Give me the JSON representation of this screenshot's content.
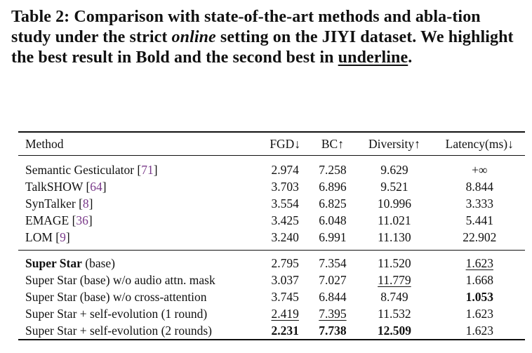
{
  "caption": {
    "part1": "Table 2: Comparison with state-of-the-art methods and abla-tion study under the strict ",
    "italic": "online",
    "part2": " setting on the JIYI dataset. We highlight the best result in Bold and the second best in ",
    "underlined": "underline",
    "end": "."
  },
  "columns": [
    "Method",
    "FGD↓",
    "BC↑",
    "Diversity↑",
    "Latency(ms)↓"
  ],
  "rows": [
    {
      "name": "Semantic Gesticulator",
      "ref": "71",
      "fgd": "2.974",
      "bc": "7.258",
      "div": "9.629",
      "lat": "+∞"
    },
    {
      "name": "TalkSHOW",
      "ref": "64",
      "fgd": "3.703",
      "bc": "6.896",
      "div": "9.521",
      "lat": "8.844"
    },
    {
      "name": "SynTalker",
      "ref": "8",
      "fgd": "3.554",
      "bc": "6.825",
      "div": "10.996",
      "lat": "3.333"
    },
    {
      "name": "EMAGE",
      "ref": "36",
      "fgd": "3.425",
      "bc": "6.048",
      "div": "11.021",
      "lat": "5.441"
    },
    {
      "name": "LOM",
      "ref": "9",
      "fgd": "3.240",
      "bc": "6.991",
      "div": "11.130",
      "lat": "22.902"
    }
  ],
  "ablation": {
    "base_bold": "Super Star",
    "base_rest": " (base)",
    "base": {
      "fgd": "2.795",
      "bc": "7.354",
      "div": "11.520",
      "lat": "1.623"
    },
    "rows": [
      {
        "name": "Super Star (base) w/o audio attn. mask",
        "fgd": "3.037",
        "bc": "7.027",
        "div": "11.779",
        "lat": "1.668"
      },
      {
        "name": "Super Star (base) w/o cross-attention",
        "fgd": "3.745",
        "bc": "6.844",
        "div": "8.749",
        "lat": "1.053"
      },
      {
        "name": "Super Star + self-evolution (1 round)",
        "fgd": "2.419",
        "bc": "7.395",
        "div": "11.532",
        "lat": "1.623"
      },
      {
        "name": "Super Star + self-evolution (2 rounds)",
        "fgd": "2.231",
        "bc": "7.738",
        "div": "12.509",
        "lat": "1.623"
      }
    ]
  }
}
